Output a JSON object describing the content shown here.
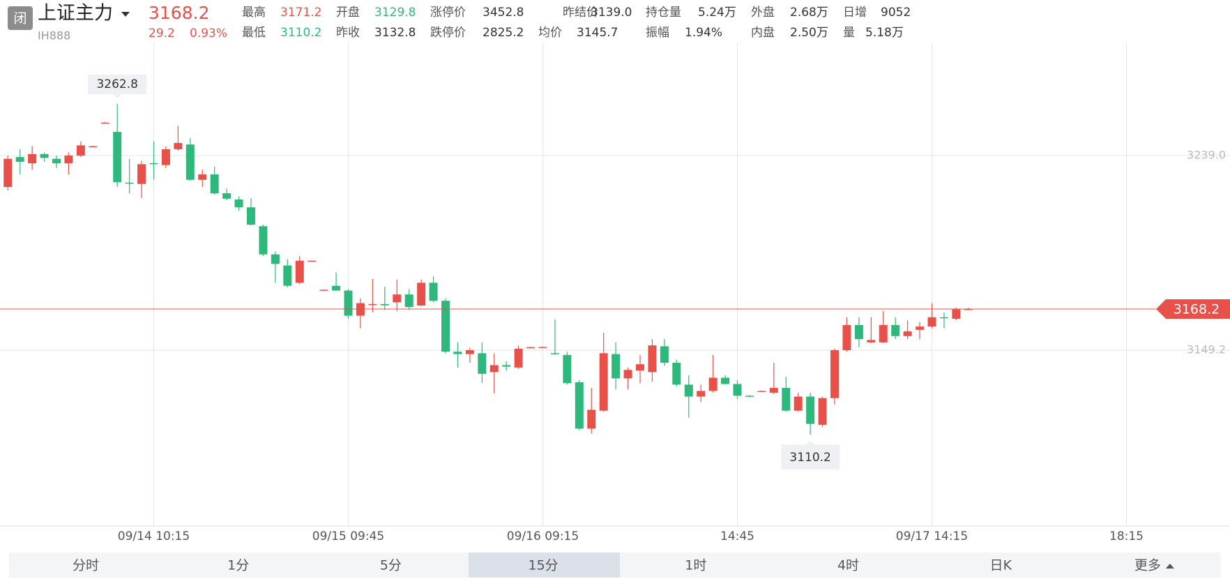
{
  "header": {
    "status": "闭",
    "name": "上证主力",
    "code": "IH888",
    "price": "3168.2",
    "change": "29.2",
    "change_pct": "0.93%",
    "stats": [
      [
        {
          "label": "最高",
          "value": "3171.2"
        },
        {
          "label": "开盘",
          "value": "3129.8"
        },
        {
          "label": "涨停价",
          "value": "3452.8"
        },
        {
          "label": "昨结价",
          "value": "3139.0"
        },
        {
          "label": "持仓量",
          "value": "5.24万"
        },
        {
          "label": "外盘",
          "value": "2.68万"
        },
        {
          "label": "日增",
          "value": "9052"
        }
      ],
      [
        {
          "label": "最低",
          "value": "3110.2"
        },
        {
          "label": "昨收",
          "value": "3132.8"
        },
        {
          "label": "跌停价",
          "value": "2825.2"
        },
        {
          "label": "均价",
          "value": "3145.7"
        },
        {
          "label": "振幅",
          "value": "1.94%"
        },
        {
          "label": "内盘",
          "value": "2.50万"
        },
        {
          "label": "量",
          "value": "5.18万"
        }
      ]
    ]
  },
  "tabs": [
    "分时",
    "1分",
    "5分",
    "15分",
    "1时",
    "4时",
    "日K",
    "更多"
  ],
  "chart_data": {
    "type": "candlestick",
    "categories": [
      null,
      null,
      null,
      null,
      null,
      null,
      null,
      null,
      null,
      null,
      null,
      null,
      "09/14 10:15",
      null,
      null,
      null,
      null,
      null,
      null,
      null,
      null,
      null,
      null,
      null,
      null,
      null,
      null,
      null,
      "09/15 09:45",
      null,
      null,
      null,
      null,
      null,
      null,
      null,
      null,
      null,
      null,
      null,
      null,
      null,
      null,
      null,
      "09/16 09:15",
      null,
      null,
      null,
      null,
      null,
      null,
      null,
      null,
      null,
      null,
      null,
      null,
      null,
      null,
      null,
      "14:45",
      null,
      null,
      null,
      null,
      null,
      null,
      null,
      null,
      null,
      null,
      null,
      null,
      null,
      null,
      null,
      "09/17 14:15",
      null,
      null,
      null,
      null,
      null,
      null,
      null,
      null,
      null,
      null,
      null,
      null,
      null,
      null,
      null,
      "18:15",
      null,
      null,
      null,
      null,
      null,
      null,
      null
    ],
    "open": [
      3224.5,
      3238.3,
      3235.4,
      3239.7,
      3237.5,
      3235.4,
      3239.0,
      3243.0,
      3254.0,
      3249.9,
      3226.5,
      3225.9,
      3235.5,
      3234.6,
      3241.9,
      3244.1,
      3227.8,
      3230.3,
      3221.6,
      3218.7,
      3215.1,
      3206.4,
      3193.4,
      3188.3,
      3180.3,
      3190.2,
      3176.9,
      3178.9,
      3176.7,
      3165.1,
      3170.1,
      3170.5,
      3171.3,
      3174.9,
      3169.8,
      3180.3,
      3172.0,
      3148.5,
      3147.4,
      3147.8,
      3139.1,
      3142.3,
      3141.2,
      3150.4,
      3150.4,
      3147.8,
      3147.0,
      3134.4,
      3113.0,
      3121.3,
      3147.4,
      3136.2,
      3139.8,
      3139.1,
      3151.0,
      3143.4,
      3133.3,
      3127.8,
      3130.4,
      3136.5,
      3133.6,
      3128.2,
      3130.0,
      3129.6,
      3131.8,
      3121.3,
      3127.8,
      3114.8,
      3127.1,
      3149.2,
      3160.8,
      3152.8,
      3152.8,
      3160.8,
      3155.7,
      3158.6,
      3160.1,
      3164.4,
      3163.7,
      3168.0,
      null,
      null,
      null,
      null,
      null,
      null,
      null,
      null,
      null,
      null,
      null,
      null,
      null,
      null,
      null,
      null,
      null,
      null,
      null,
      null
    ],
    "high": [
      3239.0,
      3241.9,
      3243.3,
      3240.4,
      3239.0,
      3240.4,
      3245.5,
      3243.5,
      3254.4,
      3262.8,
      3237.5,
      3236.5,
      3245.5,
      3243.3,
      3252.7,
      3247.0,
      3232.5,
      3233.9,
      3223.8,
      3220.2,
      3219.4,
      3207.1,
      3194.8,
      3191.2,
      3192.6,
      3190.6,
      3177.2,
      3185.0,
      3177.4,
      3173.1,
      3182.1,
      3178.5,
      3181.8,
      3177.4,
      3181.8,
      3183.2,
      3173.1,
      3152.8,
      3150.3,
      3152.8,
      3147.8,
      3144.1,
      3151.4,
      3150.8,
      3150.8,
      3163.3,
      3148.5,
      3135.4,
      3131.8,
      3157.2,
      3152.8,
      3141.2,
      3147.0,
      3154.3,
      3154.3,
      3144.9,
      3137.6,
      3133.3,
      3147.0,
      3137.6,
      3135.4,
      3128.4,
      3130.6,
      3143.4,
      3136.9,
      3129.6,
      3129.6,
      3127.8,
      3149.9,
      3164.4,
      3164.4,
      3164.4,
      3167.3,
      3164.4,
      3162.9,
      3162.2,
      3170.9,
      3166.6,
      3168.8,
      3168.8,
      null,
      null,
      null,
      null,
      null,
      null,
      null,
      null,
      null,
      null,
      null,
      null,
      null,
      null,
      null,
      null,
      null,
      null,
      null,
      null
    ],
    "low": [
      3223.0,
      3230.3,
      3232.5,
      3236.1,
      3233.2,
      3230.3,
      3238.3,
      3243.0,
      3254.0,
      3224.5,
      3221.6,
      3219.4,
      3228.1,
      3233.2,
      3241.2,
      3227.4,
      3224.5,
      3220.9,
      3218.4,
      3213.6,
      3206.8,
      3192.6,
      3180.3,
      3178.2,
      3179.6,
      3190.2,
      3176.9,
      3176.7,
      3163.7,
      3159.3,
      3166.6,
      3167.7,
      3167.3,
      3167.7,
      3169.5,
      3171.3,
      3147.8,
      3141.2,
      3143.4,
      3134.0,
      3129.3,
      3139.8,
      3140.5,
      3150.4,
      3150.4,
      3147.0,
      3133.3,
      3112.3,
      3110.8,
      3120.9,
      3131.1,
      3131.1,
      3134.0,
      3134.7,
      3142.0,
      3132.5,
      3118.1,
      3125.3,
      3129.7,
      3133.3,
      3126.8,
      3127.6,
      3130.0,
      3128.9,
      3120.9,
      3120.9,
      3110.2,
      3113.7,
      3124.2,
      3148.5,
      3150.6,
      3152.5,
      3152.5,
      3154.3,
      3154.3,
      3154.3,
      3159.3,
      3159.3,
      3163.0,
      3167.7,
      null,
      null,
      null,
      null,
      null,
      null,
      null,
      null,
      null,
      null,
      null,
      null,
      null,
      null,
      null,
      null,
      null,
      null,
      null,
      null
    ],
    "close": [
      3237.5,
      3236.1,
      3239.7,
      3237.9,
      3235.4,
      3239.0,
      3243.7,
      3243.3,
      3254.2,
      3226.7,
      3226.3,
      3235.0,
      3235.2,
      3241.9,
      3244.8,
      3227.8,
      3230.3,
      3221.6,
      3219.1,
      3215.1,
      3207.1,
      3193.4,
      3189.0,
      3178.9,
      3190.5,
      3190.5,
      3177.1,
      3176.7,
      3165.1,
      3170.9,
      3170.5,
      3169.9,
      3174.9,
      3169.1,
      3180.3,
      3172.0,
      3148.5,
      3147.4,
      3149.2,
      3138.3,
      3142.3,
      3141.6,
      3149.9,
      3150.6,
      3150.7,
      3147.4,
      3134.0,
      3113.0,
      3121.7,
      3147.8,
      3136.2,
      3140.1,
      3142.7,
      3151.4,
      3143.4,
      3133.3,
      3127.8,
      3130.4,
      3136.5,
      3133.6,
      3128.2,
      3127.8,
      3130.4,
      3131.8,
      3121.3,
      3127.8,
      3115.2,
      3127.1,
      3149.2,
      3160.8,
      3154.3,
      3153.9,
      3160.8,
      3155.7,
      3157.9,
      3160.1,
      3164.4,
      3164.0,
      3168.0,
      3168.2,
      null,
      null,
      null,
      null,
      null,
      null,
      null,
      null,
      null,
      null,
      null,
      null,
      null,
      null,
      null,
      null,
      null,
      null,
      null,
      null
    ],
    "ylim": [
      3068.1,
      3290.8
    ],
    "yticks": [
      {
        "value": 3239,
        "label": "3239.0"
      },
      3149.2
    ],
    "last_price": 3168.2,
    "high_annotation": 3262.8,
    "low_annotation": 3110.2,
    "up_color": "#e8514a",
    "down_color": "#2eb87c",
    "grid": true
  }
}
